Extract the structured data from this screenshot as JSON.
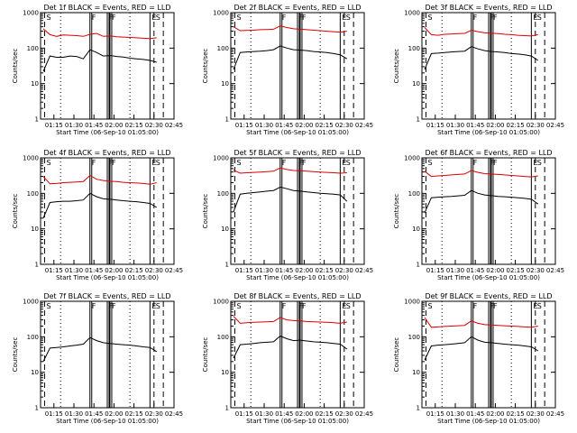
{
  "chart_data": [
    {
      "type": "line",
      "title": "Det 1f BLACK = Events, RED = LLD",
      "xlabel": "Start Time (06-Sep-10 01:05:00)",
      "ylabel": "Counts/sec",
      "yscale": "log",
      "ylim": [
        1,
        1000
      ],
      "xticks": [
        "01:15",
        "01:30",
        "01:45",
        "02:00",
        "02:15",
        "02:30",
        "02:45"
      ],
      "yticks": [
        "1",
        "10",
        "100",
        "1000"
      ],
      "markers": [
        {
          "label": "S",
          "x": "01:08"
        },
        {
          "label": "F",
          "x": "01:42"
        },
        {
          "label": "F",
          "x": "01:55"
        },
        {
          "label": "F",
          "x": "01:57"
        },
        {
          "label": "E",
          "x": "02:27"
        },
        {
          "label": "S",
          "x": "02:30"
        }
      ],
      "series": [
        {
          "name": "LLD",
          "color": "#dd0000",
          "values": [
            350,
            240,
            215,
            235,
            230,
            225,
            215,
            245,
            260,
            215,
            220,
            210,
            205,
            200,
            195,
            190,
            185,
            195
          ]
        },
        {
          "name": "Events",
          "color": "#000000",
          "values": [
            22,
            60,
            55,
            55,
            60,
            58,
            50,
            90,
            75,
            60,
            62,
            58,
            56,
            52,
            50,
            48,
            45,
            40
          ]
        }
      ]
    },
    {
      "type": "line",
      "title": "Det 2f BLACK = Events, RED = LLD",
      "xlabel": "Start Time (06-Sep-10 01:05:00)",
      "ylabel": "Counts/sec",
      "yscale": "log",
      "ylim": [
        1,
        1000
      ],
      "xticks": [
        "01:15",
        "01:30",
        "01:45",
        "02:00",
        "02:15",
        "02:30",
        "02:45"
      ],
      "yticks": [
        "1",
        "10",
        "100",
        "1000"
      ],
      "markers": [
        {
          "label": "S",
          "x": "01:08"
        },
        {
          "label": "F",
          "x": "01:42"
        },
        {
          "label": "F",
          "x": "01:55"
        },
        {
          "label": "F",
          "x": "01:57"
        },
        {
          "label": "E",
          "x": "02:27"
        },
        {
          "label": "S",
          "x": "02:30"
        }
      ],
      "series": [
        {
          "name": "LLD",
          "color": "#dd0000",
          "values": [
            400,
            310,
            315,
            320,
            330,
            335,
            340,
            420,
            380,
            350,
            340,
            330,
            320,
            310,
            300,
            290,
            280,
            300
          ]
        },
        {
          "name": "Events",
          "color": "#000000",
          "values": [
            25,
            75,
            78,
            80,
            82,
            85,
            90,
            115,
            100,
            90,
            88,
            85,
            80,
            78,
            75,
            70,
            65,
            50
          ]
        }
      ]
    },
    {
      "type": "line",
      "title": "Det 3f BLACK = Events, RED = LLD",
      "xlabel": "Start Time (06-Sep-10 01:05:00)",
      "ylabel": "Counts/sec",
      "yscale": "log",
      "ylim": [
        1,
        1000
      ],
      "xticks": [
        "01:15",
        "01:30",
        "01:45",
        "02:00",
        "02:15",
        "02:30",
        "02:45"
      ],
      "yticks": [
        "1",
        "10",
        "100",
        "1000"
      ],
      "markers": [
        {
          "label": "S",
          "x": "01:08"
        },
        {
          "label": "F",
          "x": "01:42"
        },
        {
          "label": "F",
          "x": "01:55"
        },
        {
          "label": "F",
          "x": "01:57"
        },
        {
          "label": "E",
          "x": "02:27"
        },
        {
          "label": "S",
          "x": "02:30"
        }
      ],
      "series": [
        {
          "name": "LLD",
          "color": "#dd0000",
          "values": [
            380,
            240,
            230,
            245,
            250,
            255,
            260,
            320,
            290,
            270,
            265,
            255,
            245,
            240,
            230,
            225,
            220,
            240
          ]
        },
        {
          "name": "Events",
          "color": "#000000",
          "values": [
            25,
            70,
            72,
            75,
            78,
            80,
            82,
            110,
            95,
            85,
            80,
            78,
            75,
            70,
            68,
            65,
            60,
            45
          ]
        }
      ]
    },
    {
      "type": "line",
      "title": "Det 4f BLACK = Events, RED = LLD",
      "xlabel": "Start Time (06-Sep-10 01:05:00)",
      "ylabel": "Counts/sec",
      "yscale": "log",
      "ylim": [
        1,
        1000
      ],
      "xticks": [
        "01:15",
        "01:30",
        "01:45",
        "02:00",
        "02:15",
        "02:30",
        "02:45"
      ],
      "yticks": [
        "1",
        "10",
        "100",
        "1000"
      ],
      "markers": [
        {
          "label": "S",
          "x": "01:08"
        },
        {
          "label": "F",
          "x": "01:42"
        },
        {
          "label": "F",
          "x": "01:55"
        },
        {
          "label": "F",
          "x": "01:57"
        },
        {
          "label": "E",
          "x": "02:27"
        },
        {
          "label": "S",
          "x": "02:30"
        }
      ],
      "series": [
        {
          "name": "LLD",
          "color": "#dd0000",
          "values": [
            300,
            185,
            190,
            200,
            205,
            210,
            215,
            320,
            250,
            230,
            220,
            215,
            205,
            200,
            195,
            190,
            180,
            200
          ]
        },
        {
          "name": "Events",
          "color": "#000000",
          "values": [
            20,
            55,
            58,
            60,
            60,
            62,
            65,
            100,
            80,
            70,
            68,
            65,
            62,
            60,
            58,
            55,
            52,
            40
          ]
        }
      ]
    },
    {
      "type": "line",
      "title": "Det 5f BLACK = Events, RED = LLD",
      "xlabel": "Start Time (06-Sep-10 01:05:00)",
      "ylabel": "Counts/sec",
      "yscale": "log",
      "ylim": [
        1,
        1000
      ],
      "xticks": [
        "01:15",
        "01:30",
        "01:45",
        "02:00",
        "02:15",
        "02:30",
        "02:45"
      ],
      "yticks": [
        "1",
        "10",
        "100",
        "1000"
      ],
      "markers": [
        {
          "label": "S",
          "x": "01:08"
        },
        {
          "label": "F",
          "x": "01:42"
        },
        {
          "label": "F",
          "x": "01:55"
        },
        {
          "label": "F",
          "x": "01:57"
        },
        {
          "label": "E",
          "x": "02:27"
        },
        {
          "label": "S",
          "x": "02:30"
        }
      ],
      "series": [
        {
          "name": "LLD",
          "color": "#dd0000",
          "values": [
            450,
            370,
            380,
            390,
            400,
            410,
            420,
            520,
            470,
            440,
            430,
            420,
            410,
            400,
            390,
            380,
            370,
            380
          ]
        },
        {
          "name": "Events",
          "color": "#000000",
          "values": [
            30,
            95,
            100,
            105,
            110,
            115,
            120,
            150,
            135,
            120,
            115,
            110,
            105,
            100,
            98,
            95,
            90,
            60
          ]
        }
      ]
    },
    {
      "type": "line",
      "title": "Det 6f BLACK = Events, RED = LLD",
      "xlabel": "Start Time (06-Sep-10 01:05:00)",
      "ylabel": "Counts/sec",
      "yscale": "log",
      "ylim": [
        1,
        1000
      ],
      "xticks": [
        "01:15",
        "01:30",
        "01:45",
        "02:00",
        "02:15",
        "02:30",
        "02:45"
      ],
      "yticks": [
        "1",
        "10",
        "100",
        "1000"
      ],
      "markers": [
        {
          "label": "S",
          "x": "01:08"
        },
        {
          "label": "F",
          "x": "01:42"
        },
        {
          "label": "F",
          "x": "01:55"
        },
        {
          "label": "F",
          "x": "01:57"
        },
        {
          "label": "E",
          "x": "02:27"
        },
        {
          "label": "S",
          "x": "02:30"
        }
      ],
      "series": [
        {
          "name": "LLD",
          "color": "#dd0000",
          "values": [
            420,
            300,
            310,
            320,
            330,
            340,
            350,
            440,
            390,
            360,
            350,
            340,
            330,
            320,
            310,
            300,
            290,
            310
          ]
        },
        {
          "name": "Events",
          "color": "#000000",
          "values": [
            28,
            75,
            78,
            80,
            82,
            85,
            88,
            120,
            100,
            90,
            86,
            82,
            80,
            78,
            75,
            72,
            68,
            50
          ]
        }
      ]
    },
    {
      "type": "line",
      "title": "Det 7f BLACK = Events, RED = LLD",
      "xlabel": "Start Time (06-Sep-10 01:05:00)",
      "ylabel": "Counts/sec",
      "yscale": "log",
      "ylim": [
        1,
        1000
      ],
      "xticks": [
        "01:15",
        "01:30",
        "01:45",
        "02:00",
        "02:15",
        "02:30",
        "02:45"
      ],
      "yticks": [
        "1",
        "10",
        "100",
        "1000"
      ],
      "markers": [
        {
          "label": "S",
          "x": "01:08"
        },
        {
          "label": "F",
          "x": "01:42"
        },
        {
          "label": "F",
          "x": "01:55"
        },
        {
          "label": "F",
          "x": "01:57"
        },
        {
          "label": "E",
          "x": "02:27"
        },
        {
          "label": "S",
          "x": "02:30"
        }
      ],
      "series": [
        {
          "name": "Events",
          "color": "#000000",
          "values": [
            20,
            48,
            50,
            52,
            55,
            58,
            62,
            95,
            78,
            68,
            65,
            62,
            60,
            58,
            55,
            52,
            50,
            38
          ]
        }
      ]
    },
    {
      "type": "line",
      "title": "Det 8f BLACK = Events, RED = LLD",
      "xlabel": "Start Time (06-Sep-10 01:05:00)",
      "ylabel": "Counts/sec",
      "yscale": "log",
      "ylim": [
        1,
        1000
      ],
      "xticks": [
        "01:15",
        "01:30",
        "01:45",
        "02:00",
        "02:15",
        "02:30",
        "02:45"
      ],
      "yticks": [
        "1",
        "10",
        "100",
        "1000"
      ],
      "markers": [
        {
          "label": "S",
          "x": "01:08"
        },
        {
          "label": "F",
          "x": "01:42"
        },
        {
          "label": "F",
          "x": "01:55"
        },
        {
          "label": "F",
          "x": "01:57"
        },
        {
          "label": "E",
          "x": "02:27"
        },
        {
          "label": "S",
          "x": "02:30"
        }
      ],
      "series": [
        {
          "name": "LLD",
          "color": "#dd0000",
          "values": [
            380,
            240,
            250,
            255,
            260,
            265,
            270,
            350,
            300,
            285,
            280,
            270,
            265,
            260,
            255,
            250,
            240,
            260
          ]
        },
        {
          "name": "Events",
          "color": "#000000",
          "values": [
            25,
            60,
            62,
            65,
            68,
            70,
            72,
            105,
            88,
            78,
            80,
            76,
            72,
            70,
            68,
            65,
            62,
            45
          ]
        }
      ]
    },
    {
      "type": "line",
      "title": "Det 9f BLACK = Events, RED = LLD",
      "xlabel": "Start Time (06-Sep-10 01:05:00)",
      "ylabel": "Counts/sec",
      "yscale": "log",
      "ylim": [
        1,
        1000
      ],
      "xticks": [
        "01:15",
        "01:30",
        "01:45",
        "02:00",
        "02:15",
        "02:30",
        "02:45"
      ],
      "yticks": [
        "1",
        "10",
        "100",
        "1000"
      ],
      "markers": [
        {
          "label": "S",
          "x": "01:08"
        },
        {
          "label": "F",
          "x": "01:42"
        },
        {
          "label": "F",
          "x": "01:55"
        },
        {
          "label": "F",
          "x": "01:57"
        },
        {
          "label": "E",
          "x": "02:27"
        },
        {
          "label": "S",
          "x": "02:30"
        }
      ],
      "series": [
        {
          "name": "LLD",
          "color": "#dd0000",
          "values": [
            350,
            185,
            190,
            195,
            200,
            205,
            210,
            280,
            240,
            220,
            215,
            210,
            205,
            200,
            195,
            190,
            185,
            200
          ]
        },
        {
          "name": "Events",
          "color": "#000000",
          "values": [
            22,
            55,
            58,
            60,
            62,
            65,
            68,
            100,
            80,
            70,
            68,
            65,
            62,
            60,
            58,
            55,
            52,
            40
          ]
        }
      ]
    }
  ]
}
